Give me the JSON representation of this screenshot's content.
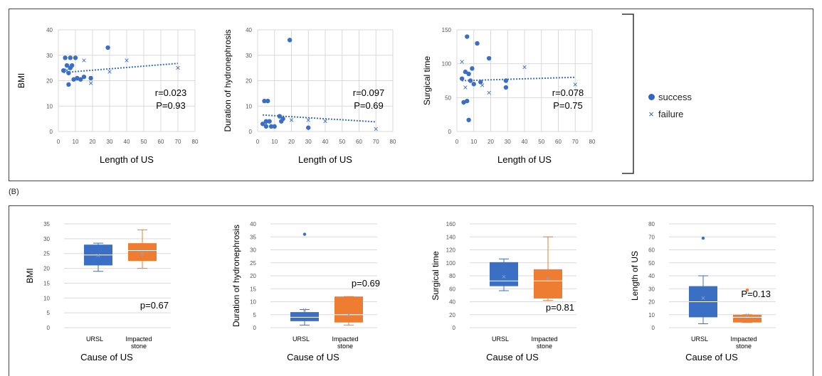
{
  "panel_label_b": "(B)",
  "legend": [
    {
      "symbol": "dot",
      "label": "success"
    },
    {
      "symbol": "x",
      "label": "failure"
    }
  ],
  "colors": {
    "blue": "#3a6fc4",
    "orange": "#ee7d31",
    "trend": "#3b6fc4",
    "grid": "#d9d9d9"
  },
  "chart_data": [
    {
      "type": "scatter",
      "panel": "A",
      "xlabel": "Length of US",
      "ylabel": "BMI",
      "xlim": [
        0,
        80
      ],
      "ylim": [
        0,
        40
      ],
      "xticks": [
        0,
        10,
        20,
        30,
        40,
        50,
        60,
        70,
        80
      ],
      "yticks": [
        0,
        10,
        20,
        30,
        40
      ],
      "annotation": [
        "r=0.023",
        "P=0.93"
      ],
      "series": [
        {
          "name": "success",
          "marker": "dot",
          "points": [
            [
              3,
              24
            ],
            [
              4,
              29
            ],
            [
              5,
              26
            ],
            [
              6,
              23
            ],
            [
              6,
              18.5
            ],
            [
              7,
              25
            ],
            [
              7,
              29
            ],
            [
              8,
              26
            ],
            [
              9,
              20.5
            ],
            [
              10,
              29
            ],
            [
              11,
              21
            ],
            [
              13,
              20.5
            ],
            [
              15,
              21.5
            ],
            [
              19,
              21
            ],
            [
              29,
              33
            ]
          ]
        },
        {
          "name": "failure",
          "marker": "x",
          "points": [
            [
              5,
              24
            ],
            [
              15,
              28
            ],
            [
              19,
              19
            ],
            [
              30,
              23.5
            ],
            [
              40,
              28
            ],
            [
              70,
              25
            ]
          ]
        }
      ],
      "trendline": [
        [
          3,
          23.2
        ],
        [
          70,
          26.8
        ]
      ]
    },
    {
      "type": "scatter",
      "panel": "A",
      "xlabel": "Length of US",
      "ylabel": "Duration of hydronephrosis",
      "xlim": [
        0,
        80
      ],
      "ylim": [
        0,
        40
      ],
      "xticks": [
        0,
        10,
        20,
        30,
        40,
        50,
        60,
        70,
        80
      ],
      "yticks": [
        0,
        10,
        20,
        30,
        40
      ],
      "annotation": [
        "r=0.097",
        "P=0.69"
      ],
      "series": [
        {
          "name": "success",
          "marker": "dot",
          "points": [
            [
              3,
              3
            ],
            [
              4,
              12
            ],
            [
              5,
              2
            ],
            [
              5,
              4
            ],
            [
              6,
              12
            ],
            [
              7,
              4
            ],
            [
              8,
              2
            ],
            [
              10,
              2
            ],
            [
              13,
              6
            ],
            [
              14,
              4
            ],
            [
              15,
              5
            ],
            [
              19,
              36
            ],
            [
              30,
              1.5
            ]
          ]
        },
        {
          "name": "failure",
          "marker": "x",
          "points": [
            [
              5,
              3
            ],
            [
              15,
              5
            ],
            [
              20,
              4.5
            ],
            [
              30,
              4.5
            ],
            [
              40,
              4
            ],
            [
              70,
              1
            ]
          ]
        }
      ],
      "trendline": [
        [
          3,
          6.5
        ],
        [
          70,
          3.8
        ]
      ]
    },
    {
      "type": "scatter",
      "panel": "A",
      "xlabel": "Length of US",
      "ylabel": "Surgical time",
      "xlim": [
        0,
        80
      ],
      "ylim": [
        0,
        150
      ],
      "xticks": [
        0,
        10,
        20,
        30,
        40,
        50,
        60,
        70,
        80
      ],
      "yticks": [
        0,
        50,
        100,
        150
      ],
      "annotation": [
        "r=0.078",
        "P=0.75"
      ],
      "series": [
        {
          "name": "success",
          "marker": "dot",
          "points": [
            [
              3,
              78
            ],
            [
              4,
              43
            ],
            [
              5,
              88
            ],
            [
              6,
              140
            ],
            [
              6,
              45
            ],
            [
              7,
              17
            ],
            [
              7,
              85
            ],
            [
              8,
              75
            ],
            [
              9,
              93
            ],
            [
              10,
              70
            ],
            [
              12,
              130
            ],
            [
              14,
              73
            ],
            [
              19,
              108
            ],
            [
              29,
              75
            ],
            [
              29,
              65
            ]
          ]
        },
        {
          "name": "failure",
          "marker": "x",
          "points": [
            [
              3,
              103
            ],
            [
              5,
              65
            ],
            [
              15,
              68
            ],
            [
              19,
              57
            ],
            [
              40,
              95
            ],
            [
              70,
              69
            ]
          ]
        }
      ],
      "trendline": [
        [
          3,
          75
        ],
        [
          70,
          80
        ]
      ]
    },
    {
      "type": "box",
      "panel": "B",
      "xlabel": "Cause of US",
      "ylabel": "BMI",
      "ylim": [
        0,
        35
      ],
      "yticks": [
        0,
        5,
        10,
        15,
        20,
        25,
        30,
        35
      ],
      "categories": [
        "URSL",
        "Impacted stone"
      ],
      "annotation": "p=0.67",
      "boxes": [
        {
          "min": 19,
          "q1": 21,
          "median": 24.5,
          "q3": 28,
          "max": 28.5,
          "mean": 24.5,
          "outliers": []
        },
        {
          "min": 20,
          "q1": 22.5,
          "median": 26,
          "q3": 28.5,
          "max": 33,
          "mean": 25,
          "outliers": []
        }
      ]
    },
    {
      "type": "box",
      "panel": "B",
      "xlabel": "Cause of US",
      "ylabel": "Duration of hydronephrosis",
      "ylim": [
        0,
        40
      ],
      "yticks": [
        0,
        5,
        10,
        15,
        20,
        25,
        30,
        35,
        40
      ],
      "categories": [
        "URSL",
        "Impacted stone"
      ],
      "annotation": "p=0.69",
      "boxes": [
        {
          "min": 1,
          "q1": 2.5,
          "median": 4,
          "q3": 6,
          "max": 7,
          "mean": 7,
          "outliers": [
            36
          ]
        },
        {
          "min": 1,
          "q1": 2,
          "median": 5,
          "q3": 12,
          "max": 12,
          "mean": 5,
          "outliers": []
        }
      ]
    },
    {
      "type": "box",
      "panel": "B",
      "xlabel": "Cause of US",
      "ylabel": "Surgical time",
      "ylim": [
        0,
        160
      ],
      "yticks": [
        0,
        20,
        40,
        60,
        80,
        100,
        120,
        140,
        160
      ],
      "categories": [
        "URSL",
        "Impacted stone"
      ],
      "annotation": "p=0.81",
      "boxes": [
        {
          "min": 57,
          "q1": 64,
          "median": 72,
          "q3": 101,
          "max": 106,
          "mean": 79,
          "outliers": []
        },
        {
          "min": 42,
          "q1": 45,
          "median": 72,
          "q3": 90,
          "max": 140,
          "mean": 76,
          "outliers": []
        }
      ]
    },
    {
      "type": "box",
      "panel": "B",
      "xlabel": "Cause of US",
      "ylabel": "Length of US",
      "ylim": [
        0,
        80
      ],
      "yticks": [
        0,
        10,
        20,
        30,
        40,
        50,
        60,
        70,
        80
      ],
      "categories": [
        "URSL",
        "Impacted stone"
      ],
      "annotation": "P=0.13",
      "boxes": [
        {
          "min": 3,
          "q1": 8,
          "median": 20,
          "q3": 32,
          "max": 40,
          "mean": 23,
          "outliers": [
            69
          ]
        },
        {
          "min": 4,
          "q1": 4,
          "median": 8,
          "q3": 10,
          "max": 10,
          "mean": 10,
          "outliers": [
            29
          ]
        }
      ]
    }
  ]
}
